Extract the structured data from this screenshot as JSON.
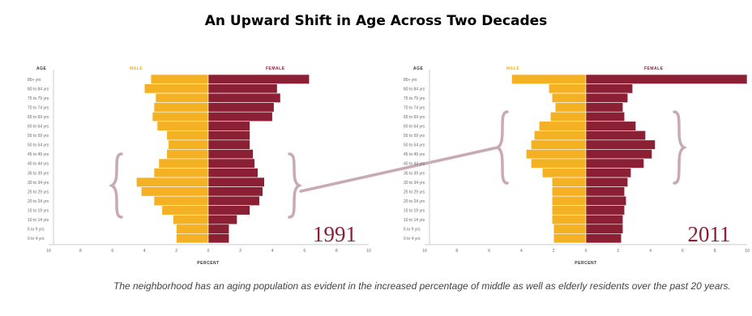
{
  "title": "An Upward Shift in Age Across Two Decades",
  "caption": "The neighborhood has an aging population as evident in the increased percentage of middle as well as elderly residents over the past 20 years.",
  "colors": {
    "male": "#f5b124",
    "female": "#8b1f33",
    "bracket": "#c9a9b4",
    "axis": "#cccccc",
    "grid": "#e3e3e3"
  },
  "chart_data": [
    {
      "type": "bar",
      "subtype": "population-pyramid",
      "year_label": "1991",
      "ylabel": "AGE",
      "xlabel": "PERCENT",
      "legend": {
        "male": "MALE",
        "female": "FEMALE"
      },
      "age_groups": [
        "85+ yrs",
        "80 to 84 yrs",
        "75 to 79 yrs",
        "70 to 74 yrs",
        "65 to 69 yrs",
        "60 to 64 yrs",
        "55 to 59 yrs",
        "50 to 54 yrs",
        "45 to 49 yrs",
        "40 to 44 yrs",
        "35 to 39 yrs",
        "30 to 34 yrs",
        "25 to 29 yrs",
        "20 to 24 yrs",
        "15 to 19 yrs",
        "10 to 14 yrs",
        "5 to 9 yrs",
        "0 to 4 yrs"
      ],
      "series": [
        {
          "name": "MALE",
          "values": [
            3.6,
            4.0,
            3.3,
            3.4,
            3.5,
            3.2,
            2.6,
            2.5,
            2.6,
            3.1,
            3.4,
            4.5,
            4.2,
            3.4,
            2.9,
            2.2,
            2.0,
            2.0
          ]
        },
        {
          "name": "FEMALE",
          "values": [
            6.3,
            4.3,
            4.5,
            4.1,
            4.0,
            2.6,
            2.6,
            2.6,
            2.8,
            2.9,
            3.1,
            3.5,
            3.4,
            3.2,
            2.6,
            1.8,
            1.3,
            1.3
          ]
        }
      ],
      "xlim": [
        -10,
        10
      ],
      "xticks": [
        10,
        8,
        6,
        4,
        2,
        0,
        2,
        4,
        6,
        8,
        10
      ]
    },
    {
      "type": "bar",
      "subtype": "population-pyramid",
      "year_label": "2011",
      "ylabel": "AGE",
      "xlabel": "PERCENT",
      "legend": {
        "male": "MALE",
        "female": "FEMALE"
      },
      "age_groups": [
        "85+ yrs",
        "80 to 84 yrs",
        "75 to 79 yrs",
        "70 to 74 yrs",
        "65 to 69 yrs",
        "60 to 64 yrs",
        "55 to 59 yrs",
        "50 to 54 yrs",
        "45 to 49 yrs",
        "40 to 44 yrs",
        "35 to 39 yrs",
        "30 to 34 yrs",
        "25 to 29 yrs",
        "20 to 24 yrs",
        "15 to 19 yrs",
        "10 to 14 yrs",
        "5 to 9 yrs",
        "0 to 4 yrs"
      ],
      "series": [
        {
          "name": "MALE",
          "values": [
            4.6,
            2.3,
            2.1,
            1.9,
            2.2,
            2.9,
            3.2,
            3.4,
            3.7,
            3.4,
            2.7,
            2.1,
            2.1,
            2.1,
            2.1,
            2.1,
            2.0,
            2.0
          ]
        },
        {
          "name": "FEMALE",
          "values": [
            10.4,
            2.9,
            2.6,
            2.3,
            2.4,
            3.1,
            3.7,
            4.3,
            4.1,
            3.6,
            2.8,
            2.6,
            2.4,
            2.5,
            2.4,
            2.3,
            2.3,
            2.2
          ]
        }
      ],
      "xlim": [
        -10,
        10
      ],
      "xticks": [
        10,
        8,
        6,
        4,
        2,
        0,
        2,
        4,
        6,
        8,
        10
      ]
    }
  ]
}
